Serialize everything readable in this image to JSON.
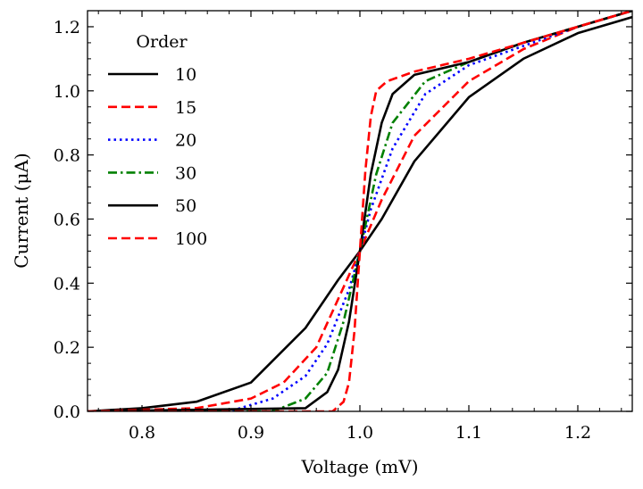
{
  "chart_data": {
    "type": "line",
    "xlabel": "Voltage (mV)",
    "ylabel": "Current (μA)",
    "xlim": [
      0.75,
      1.25
    ],
    "ylim": [
      0.0,
      1.25
    ],
    "x_ticks": [
      0.8,
      0.9,
      1.0,
      1.1,
      1.2
    ],
    "x_tick_labels": [
      "0.8",
      "0.9",
      "1.0",
      "1.1",
      "1.2"
    ],
    "y_ticks": [
      0.0,
      0.2,
      0.4,
      0.6,
      0.8,
      1.0,
      1.2
    ],
    "y_tick_labels": [
      "0.0",
      "0.2",
      "0.4",
      "0.6",
      "0.8",
      "1.0",
      "1.2"
    ],
    "grid": false,
    "legend": {
      "title": "Order",
      "position": "top-left"
    },
    "series": [
      {
        "name": "10",
        "order": 10,
        "color": "#000000",
        "style": "solid",
        "x": [
          0.75,
          0.8,
          0.85,
          0.9,
          0.95,
          0.98,
          1.0,
          1.02,
          1.05,
          1.1,
          1.15,
          1.2,
          1.25
        ],
        "y": [
          0.0,
          0.01,
          0.03,
          0.09,
          0.26,
          0.41,
          0.5,
          0.6,
          0.78,
          0.98,
          1.1,
          1.18,
          1.23
        ]
      },
      {
        "name": "15",
        "order": 15,
        "color": "#ff0000",
        "style": "dashed",
        "x": [
          0.75,
          0.85,
          0.9,
          0.93,
          0.96,
          0.98,
          1.0,
          1.02,
          1.05,
          1.1,
          1.15,
          1.2,
          1.25
        ],
        "y": [
          0.0,
          0.01,
          0.04,
          0.09,
          0.2,
          0.35,
          0.5,
          0.66,
          0.86,
          1.03,
          1.13,
          1.2,
          1.25
        ]
      },
      {
        "name": "20",
        "order": 20,
        "color": "#0000ff",
        "style": "dotted",
        "x": [
          0.75,
          0.88,
          0.92,
          0.95,
          0.97,
          0.99,
          1.0,
          1.01,
          1.03,
          1.06,
          1.1,
          1.15,
          1.2,
          1.25
        ],
        "y": [
          0.0,
          0.0,
          0.04,
          0.11,
          0.21,
          0.38,
          0.5,
          0.63,
          0.82,
          0.99,
          1.08,
          1.14,
          1.2,
          1.25
        ]
      },
      {
        "name": "30",
        "order": 30,
        "color": "#008000",
        "style": "dashdot",
        "x": [
          0.75,
          0.92,
          0.95,
          0.97,
          0.985,
          1.0,
          1.015,
          1.03,
          1.06,
          1.1,
          1.15,
          1.2,
          1.25
        ],
        "y": [
          0.0,
          0.0,
          0.04,
          0.12,
          0.28,
          0.5,
          0.74,
          0.9,
          1.03,
          1.09,
          1.15,
          1.2,
          1.25
        ]
      },
      {
        "name": "50",
        "order": 50,
        "color": "#000000",
        "style": "solid",
        "x": [
          0.75,
          0.95,
          0.97,
          0.98,
          0.99,
          1.0,
          1.01,
          1.02,
          1.03,
          1.05,
          1.1,
          1.15,
          1.2,
          1.25
        ],
        "y": [
          0.0,
          0.01,
          0.06,
          0.13,
          0.28,
          0.5,
          0.74,
          0.9,
          0.99,
          1.05,
          1.09,
          1.15,
          1.2,
          1.25
        ]
      },
      {
        "name": "100",
        "order": 100,
        "color": "#ff0000",
        "style": "dashed",
        "x": [
          0.75,
          0.975,
          0.985,
          0.99,
          0.995,
          1.0,
          1.005,
          1.01,
          1.015,
          1.025,
          1.05,
          1.1,
          1.15,
          1.2,
          1.25
        ],
        "y": [
          0.0,
          0.0,
          0.03,
          0.09,
          0.25,
          0.5,
          0.75,
          0.92,
          1.0,
          1.03,
          1.06,
          1.1,
          1.15,
          1.2,
          1.25
        ]
      }
    ]
  }
}
